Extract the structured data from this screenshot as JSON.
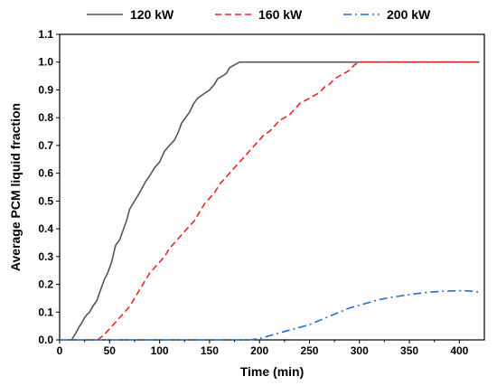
{
  "chart_data": {
    "type": "line",
    "title": "",
    "xlabel": "Time (min)",
    "ylabel": "Average PCM liquid fraction",
    "xlim": [
      0,
      425
    ],
    "ylim": [
      0,
      1.1
    ],
    "xticks": [
      0,
      50,
      100,
      150,
      200,
      250,
      300,
      350,
      400
    ],
    "yticks": [
      0.0,
      0.1,
      0.2,
      0.3,
      0.4,
      0.5,
      0.6,
      0.7,
      0.8,
      0.9,
      1.0,
      1.1
    ],
    "ytick_labels": [
      "0.0",
      "0.1",
      "0.2",
      "0.3",
      "0.4",
      "0.5",
      "0.6",
      "0.7",
      "0.8",
      "0.9",
      "1.0",
      "1.1"
    ],
    "xtick_labels": [
      "0",
      "50",
      "100",
      "150",
      "200",
      "250",
      "300",
      "350",
      "400"
    ],
    "grid": false,
    "legend_position": "top",
    "series": [
      {
        "name": "120 kW",
        "color": "#555555",
        "dash": "solid",
        "x": [
          12,
          17,
          20,
          22,
          25,
          27,
          30,
          33,
          37,
          40,
          45,
          48,
          52,
          56,
          60,
          63,
          67,
          70,
          75,
          80,
          86,
          90,
          95,
          100,
          105,
          110,
          115,
          119,
          122,
          126,
          130,
          134,
          138,
          142,
          146,
          150,
          155,
          158,
          163,
          167,
          170,
          175,
          180,
          184,
          188,
          195,
          250,
          300,
          350,
          420
        ],
        "y": [
          0.0,
          0.03,
          0.05,
          0.06,
          0.08,
          0.09,
          0.1,
          0.12,
          0.14,
          0.17,
          0.22,
          0.24,
          0.28,
          0.34,
          0.36,
          0.39,
          0.43,
          0.47,
          0.5,
          0.53,
          0.57,
          0.59,
          0.62,
          0.64,
          0.68,
          0.7,
          0.72,
          0.75,
          0.78,
          0.8,
          0.82,
          0.85,
          0.87,
          0.88,
          0.89,
          0.9,
          0.92,
          0.94,
          0.95,
          0.96,
          0.98,
          0.99,
          1.0,
          1.0,
          1.0,
          1.0,
          1.0,
          1.0,
          1.0,
          1.0
        ]
      },
      {
        "name": "160 kW",
        "color": "#ee2222",
        "dash": "dashed",
        "x": [
          38,
          45,
          50,
          55,
          60,
          65,
          70,
          75,
          80,
          85,
          90,
          95,
          100,
          105,
          110,
          115,
          120,
          125,
          130,
          135,
          140,
          145,
          150,
          155,
          160,
          165,
          170,
          175,
          180,
          185,
          190,
          195,
          200,
          205,
          210,
          215,
          220,
          225,
          230,
          235,
          240,
          245,
          250,
          255,
          260,
          265,
          270,
          275,
          280,
          285,
          290,
          295,
          300,
          350,
          420
        ],
        "y": [
          0.0,
          0.02,
          0.04,
          0.06,
          0.08,
          0.1,
          0.12,
          0.15,
          0.18,
          0.21,
          0.24,
          0.26,
          0.28,
          0.3,
          0.33,
          0.35,
          0.37,
          0.39,
          0.41,
          0.43,
          0.46,
          0.49,
          0.51,
          0.53,
          0.56,
          0.58,
          0.6,
          0.62,
          0.64,
          0.66,
          0.68,
          0.7,
          0.72,
          0.74,
          0.75,
          0.77,
          0.79,
          0.8,
          0.81,
          0.83,
          0.85,
          0.86,
          0.87,
          0.88,
          0.89,
          0.91,
          0.92,
          0.94,
          0.95,
          0.96,
          0.97,
          0.99,
          1.0,
          1.0,
          1.0
        ]
      },
      {
        "name": "200 kW",
        "color": "#1f6fd6",
        "dash": "dashdot",
        "x": [
          0,
          50,
          100,
          150,
          190,
          200,
          210,
          220,
          230,
          240,
          250,
          260,
          270,
          280,
          290,
          300,
          310,
          320,
          330,
          340,
          350,
          360,
          370,
          380,
          390,
          400,
          410,
          420
        ],
        "y": [
          0.0,
          0.0,
          0.0,
          0.0,
          0.0,
          0.005,
          0.015,
          0.025,
          0.035,
          0.045,
          0.055,
          0.07,
          0.085,
          0.1,
          0.115,
          0.125,
          0.135,
          0.145,
          0.152,
          0.158,
          0.163,
          0.168,
          0.172,
          0.174,
          0.176,
          0.177,
          0.176,
          0.172
        ]
      }
    ]
  }
}
